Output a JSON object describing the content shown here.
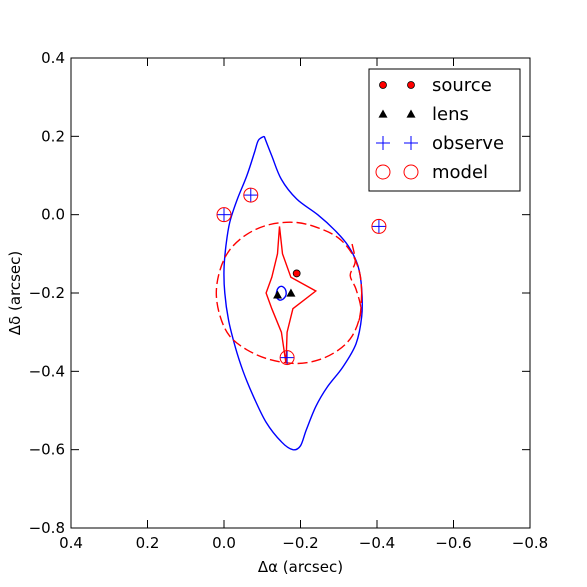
{
  "chart_data": {
    "type": "scatter",
    "xlabel": "Δα (arcsec)",
    "ylabel": "Δδ (arcsec)",
    "xlim": [
      0.4,
      -0.8
    ],
    "ylim": [
      -0.8,
      0.4
    ],
    "x_ticks": [
      0.4,
      0.2,
      0.0,
      -0.2,
      -0.4,
      -0.6,
      -0.8
    ],
    "x_tick_labels": [
      "0.4",
      "0.2",
      "0.0",
      "−0.2",
      "−0.4",
      "−0.6",
      "−0.8"
    ],
    "y_ticks": [
      0.4,
      0.2,
      0.0,
      -0.2,
      -0.4,
      -0.6,
      -0.8
    ],
    "y_tick_labels": [
      "0.4",
      "0.2",
      "0.0",
      "−0.2",
      "−0.4",
      "−0.6",
      "−0.8"
    ],
    "grid": false,
    "legend_position": "top-right",
    "colors": {
      "red": "#ff0000",
      "blue": "#0000ff",
      "black": "#000000"
    },
    "series": [
      {
        "name": "source",
        "marker": "filled-circle",
        "color": "#ff0000",
        "points": [
          {
            "x": -0.19,
            "y": -0.15
          }
        ]
      },
      {
        "name": "lens",
        "marker": "filled-triangle",
        "color": "#000000",
        "points": [
          {
            "x": -0.14,
            "y": -0.205
          },
          {
            "x": -0.175,
            "y": -0.2
          }
        ]
      },
      {
        "name": "observe",
        "marker": "plus",
        "color": "#0000ff",
        "points": [
          {
            "x": 0.0,
            "y": 0.0
          },
          {
            "x": -0.07,
            "y": 0.05
          },
          {
            "x": -0.405,
            "y": -0.03
          },
          {
            "x": -0.165,
            "y": -0.365
          }
        ]
      },
      {
        "name": "model",
        "marker": "open-circle",
        "color": "#ff0000",
        "points": [
          {
            "x": 0.0,
            "y": 0.0
          },
          {
            "x": -0.07,
            "y": 0.05
          },
          {
            "x": -0.405,
            "y": -0.03
          },
          {
            "x": -0.165,
            "y": -0.365
          }
        ]
      }
    ],
    "curves": [
      {
        "id": "critical-curve",
        "color": "#0000ff",
        "style": "solid",
        "points": [
          [
            -0.105,
            0.2
          ],
          [
            -0.09,
            0.19
          ],
          [
            -0.08,
            0.16
          ],
          [
            -0.06,
            0.1
          ],
          [
            -0.035,
            0.04
          ],
          [
            -0.015,
            -0.02
          ],
          [
            -0.005,
            -0.08
          ],
          [
            0.0,
            -0.14
          ],
          [
            -0.002,
            -0.2
          ],
          [
            -0.012,
            -0.27
          ],
          [
            -0.03,
            -0.34
          ],
          [
            -0.05,
            -0.4
          ],
          [
            -0.075,
            -0.46
          ],
          [
            -0.11,
            -0.53
          ],
          [
            -0.15,
            -0.58
          ],
          [
            -0.18,
            -0.6
          ],
          [
            -0.2,
            -0.59
          ],
          [
            -0.215,
            -0.55
          ],
          [
            -0.24,
            -0.49
          ],
          [
            -0.27,
            -0.44
          ],
          [
            -0.31,
            -0.39
          ],
          [
            -0.345,
            -0.33
          ],
          [
            -0.36,
            -0.26
          ],
          [
            -0.36,
            -0.19
          ],
          [
            -0.35,
            -0.13
          ],
          [
            -0.325,
            -0.08
          ],
          [
            -0.29,
            -0.04
          ],
          [
            -0.245,
            0.0
          ],
          [
            -0.19,
            0.04
          ],
          [
            -0.15,
            0.09
          ],
          [
            -0.125,
            0.15
          ],
          [
            -0.105,
            0.2
          ]
        ]
      },
      {
        "id": "inner-critical-curve",
        "color": "#0000ff",
        "style": "solid",
        "points": [
          [
            -0.135,
            -0.21
          ],
          [
            -0.14,
            -0.19
          ],
          [
            -0.15,
            -0.183
          ],
          [
            -0.16,
            -0.19
          ],
          [
            -0.162,
            -0.205
          ],
          [
            -0.155,
            -0.215
          ],
          [
            -0.145,
            -0.218
          ],
          [
            -0.135,
            -0.21
          ]
        ]
      },
      {
        "id": "caustic-curve",
        "color": "#ff0000",
        "style": "solid",
        "points": [
          [
            -0.145,
            -0.03
          ],
          [
            -0.153,
            -0.1
          ],
          [
            -0.175,
            -0.16
          ],
          [
            -0.24,
            -0.195
          ],
          [
            -0.18,
            -0.24
          ],
          [
            -0.165,
            -0.3
          ],
          [
            -0.162,
            -0.38
          ],
          [
            -0.15,
            -0.3
          ],
          [
            -0.125,
            -0.24
          ],
          [
            -0.11,
            -0.2
          ],
          [
            -0.125,
            -0.16
          ],
          [
            -0.14,
            -0.1
          ],
          [
            -0.145,
            -0.03
          ]
        ]
      },
      {
        "id": "outer-caustic",
        "color": "#ff0000",
        "style": "dashed",
        "points": [
          [
            -0.36,
            -0.2
          ],
          [
            -0.355,
            -0.26
          ],
          [
            -0.335,
            -0.31
          ],
          [
            -0.3,
            -0.345
          ],
          [
            -0.25,
            -0.37
          ],
          [
            -0.19,
            -0.38
          ],
          [
            -0.12,
            -0.37
          ],
          [
            -0.06,
            -0.345
          ],
          [
            -0.015,
            -0.31
          ],
          [
            0.01,
            -0.26
          ],
          [
            0.02,
            -0.2
          ],
          [
            0.01,
            -0.14
          ],
          [
            -0.015,
            -0.09
          ],
          [
            -0.06,
            -0.05
          ],
          [
            -0.12,
            -0.025
          ],
          [
            -0.19,
            -0.02
          ],
          [
            -0.25,
            -0.035
          ],
          [
            -0.3,
            -0.06
          ],
          [
            -0.335,
            -0.1
          ],
          [
            -0.355,
            -0.15
          ],
          [
            -0.36,
            -0.2
          ]
        ]
      },
      {
        "id": "caustic-fold",
        "color": "#ff0000",
        "style": "dashed",
        "points": [
          [
            -0.335,
            -0.075
          ],
          [
            -0.343,
            -0.12
          ],
          [
            -0.33,
            -0.155
          ],
          [
            -0.345,
            -0.19
          ],
          [
            -0.358,
            -0.24
          ],
          [
            -0.35,
            -0.28
          ]
        ]
      }
    ]
  }
}
